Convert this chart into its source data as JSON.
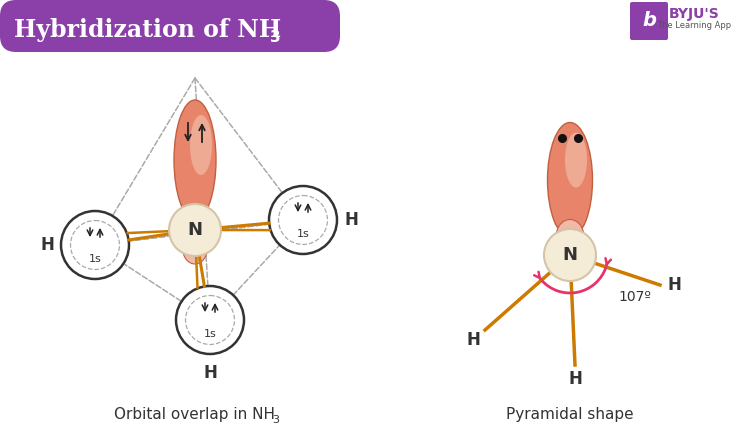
{
  "bg": "#FFFFFF",
  "title_bg": "#8B3FA8",
  "title_fg": "#FFFFFF",
  "orbital_fill_top": "#E8846A",
  "orbital_fill_bot": "#F2B8A8",
  "n_fill": "#F5ECD7",
  "n_edge": "#D4C4A8",
  "h_edge": "#333333",
  "bond_color": "#CC7A00",
  "dash_color": "#AAAAAA",
  "arrow_color": "#E8336A",
  "label_left": "Orbital overlap in NH",
  "label_right": "Pyramidal shape",
  "angle_text": "107º",
  "byju_purple": "#8B3FA8"
}
